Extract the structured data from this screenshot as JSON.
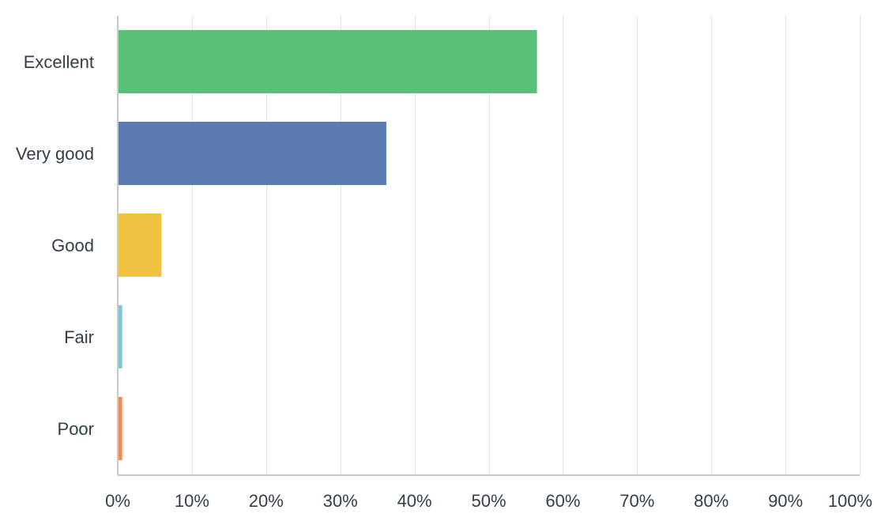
{
  "chart_data": {
    "type": "bar",
    "orientation": "horizontal",
    "categories": [
      "Excellent",
      "Very good",
      "Good",
      "Fair",
      "Poor"
    ],
    "values": [
      56.5,
      36.2,
      5.9,
      0.6,
      0.6
    ],
    "xlim": [
      0,
      100
    ],
    "tick_values": [
      0,
      10,
      20,
      30,
      40,
      50,
      60,
      70,
      80,
      90,
      100
    ],
    "tick_labels": [
      "0%",
      "10%",
      "20%",
      "30%",
      "40%",
      "50%",
      "60%",
      "70%",
      "80%",
      "90%",
      "100%"
    ],
    "title": "",
    "xlabel": "",
    "ylabel": "",
    "grid": true,
    "colors": [
      "#5bbf78",
      "#5b7bb2",
      "#f0c240",
      "#7fc6d1",
      "#ee8a52"
    ]
  }
}
